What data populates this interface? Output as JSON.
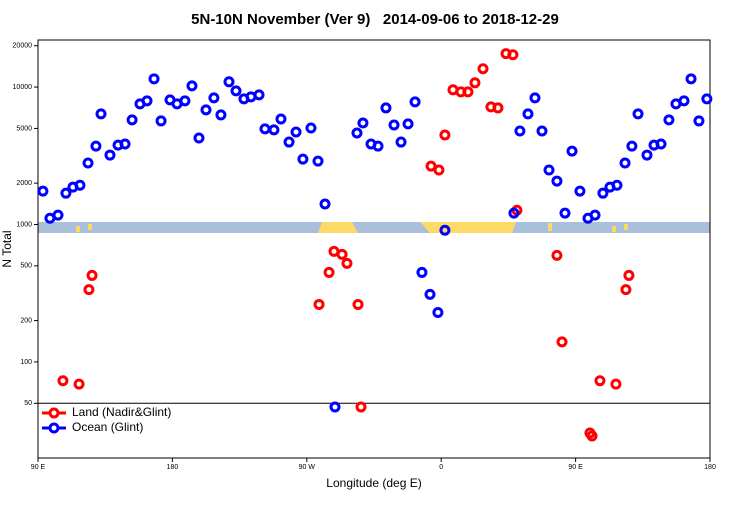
{
  "chart_data": {
    "type": "scatter",
    "title": "5N-10N November (Ver 9)   2014-09-06 to 2018-12-29",
    "x_label": "Longitude (deg E)",
    "y_label": "N Total",
    "y_scale": "log",
    "xlim": [
      90,
      540
    ],
    "ylim": [
      20,
      22000
    ],
    "xticks": [
      {
        "value": 90,
        "label": "90 E"
      },
      {
        "value": 180,
        "label": "180"
      },
      {
        "value": 270,
        "label": "90 W"
      },
      {
        "value": 360,
        "label": "0"
      },
      {
        "value": 450,
        "label": "90 E"
      },
      {
        "value": 540,
        "label": "180"
      }
    ],
    "yticks": [
      50,
      100,
      200,
      500,
      1000,
      2000,
      5000,
      10000,
      20000
    ],
    "hline": 50,
    "legend": "lower left",
    "series": [
      {
        "name": "Land (Nadir&Glint)",
        "color": "#ff0000",
        "x": [
          106.7,
          117.5,
          124.1,
          126.2,
          278.2,
          284.9,
          288.2,
          293.6,
          296.9,
          304.3,
          306.3,
          353.2,
          358.5,
          362.5,
          367.9,
          373.2,
          377.9,
          382.6,
          388.0,
          393.3,
          398.0,
          403.4,
          408.0,
          410.7,
          437.5,
          440.9,
          459.6,
          461.0,
          466.3,
          477.0,
          483.7,
          485.7
        ],
        "values": [
          73,
          69,
          336,
          426,
          262,
          448,
          637,
          606,
          521,
          262,
          47,
          2660,
          2490,
          4480,
          9550,
          9230,
          9230,
          10740,
          13600,
          7180,
          7050,
          17500,
          17200,
          1270,
          596,
          140,
          30.4,
          28.9,
          73,
          69,
          336,
          426
        ]
      },
      {
        "name": "Ocean (Glint)",
        "color": "#0000ff",
        "x": [
          93.3,
          98.0,
          103.4,
          108.7,
          113.4,
          118.1,
          123.5,
          128.8,
          132.2,
          138.2,
          143.6,
          148.3,
          153.0,
          158.3,
          163.0,
          167.7,
          172.4,
          178.4,
          183.1,
          188.4,
          193.1,
          197.8,
          202.5,
          207.8,
          212.5,
          217.9,
          222.6,
          227.9,
          232.6,
          238.0,
          242.0,
          248.0,
          252.7,
          258.1,
          262.8,
          267.4,
          272.8,
          277.5,
          282.2,
          288.9,
          303.6,
          307.6,
          313.0,
          317.7,
          323.0,
          328.4,
          333.1,
          337.8,
          342.5,
          347.1,
          352.5,
          357.8,
          362.5,
          408.7,
          412.7,
          418.1,
          422.8,
          427.5,
          432.2,
          437.5,
          442.9,
          447.6,
          452.9,
          458.3,
          463.0,
          468.3,
          473.0,
          477.7,
          483.1,
          487.7,
          491.8,
          497.8,
          502.5,
          507.2,
          512.5,
          517.2,
          522.6,
          527.3,
          532.6,
          537.9
        ],
        "values": [
          1750,
          1110,
          1170,
          1690,
          1870,
          1930,
          2800,
          3720,
          6380,
          3200,
          3780,
          3850,
          5770,
          7550,
          7940,
          11480,
          5670,
          8070,
          7550,
          7940,
          10200,
          4260,
          6820,
          8340,
          6270,
          10920,
          9380,
          8200,
          8490,
          8770,
          4960,
          4880,
          5860,
          3980,
          4710,
          2990,
          5040,
          2890,
          1410,
          47,
          4630,
          5480,
          3850,
          3720,
          7050,
          5300,
          3980,
          5400,
          7800,
          448,
          310,
          229,
          908,
          1210,
          4790,
          6380,
          8340,
          4790,
          2490,
          2070,
          1210,
          3420,
          1750,
          1110,
          1170,
          1690,
          1870,
          1930,
          2800,
          3720,
          6380,
          3200,
          3780,
          3850,
          5770,
          7550,
          7940,
          11480,
          5670,
          8200
        ]
      }
    ]
  }
}
